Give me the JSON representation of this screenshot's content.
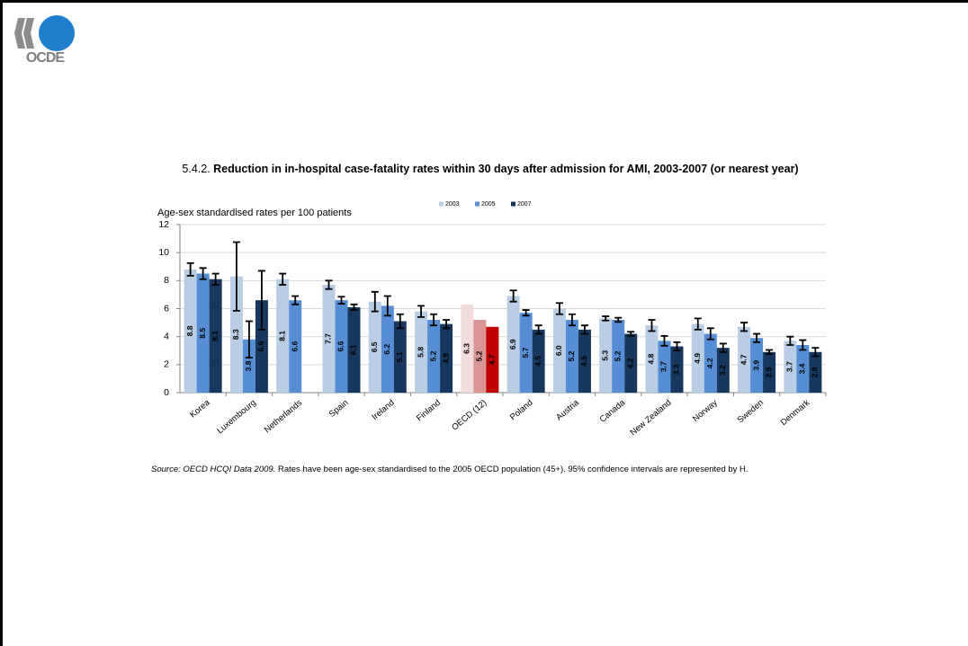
{
  "logo": "OCDE",
  "chart_data": {
    "type": "bar",
    "number": "5.4.2.",
    "title": "Reduction in in-hospital case-fatality rates within 30 days after admission for AMI, 2003-2007 (or nearest year)",
    "y_label": "Age-sex standardised rates per 100 patients",
    "categories": [
      "Korea",
      "Luxembourg",
      "Netherlands",
      "Spain",
      "Ireland",
      "Finland",
      "OECD (12)",
      "Poland",
      "Austria",
      "Canada",
      "New Zealand",
      "Norway",
      "Sweden",
      "Denmark"
    ],
    "highlight_category": "OECD (12)",
    "series": [
      {
        "name": "2003",
        "color": "#b9cde5",
        "highlight_color": "#f2dcdb",
        "values": [
          8.8,
          8.3,
          8.1,
          7.7,
          6.5,
          5.8,
          6.3,
          6.9,
          6.0,
          5.3,
          4.8,
          4.9,
          4.7,
          3.7
        ],
        "value_labels": [
          "8.8",
          "8.3",
          "8.1",
          "7.7",
          "6.5",
          "5.8",
          "6.3",
          "6.9",
          "6.0",
          "5.3",
          "4.8",
          "4.9",
          "4.7",
          "3.7"
        ],
        "errors": [
          0.45,
          2.45,
          0.4,
          0.3,
          0.7,
          0.4,
          null,
          0.4,
          0.4,
          0.15,
          0.4,
          0.4,
          0.3,
          0.3
        ]
      },
      {
        "name": "2005",
        "color": "#558ed5",
        "highlight_color": "#d99694",
        "values": [
          8.5,
          3.8,
          6.6,
          6.6,
          6.2,
          5.2,
          5.2,
          5.7,
          5.2,
          5.2,
          3.7,
          4.2,
          3.9,
          3.4
        ],
        "value_labels": [
          "8.5",
          "3.8",
          "6.6",
          "6.6",
          "6.2",
          "5.2",
          "5.2",
          "5.7",
          "5.2",
          "5.2",
          "3.7",
          "4.2",
          "3.9",
          "3.4"
        ],
        "errors": [
          0.4,
          1.3,
          0.3,
          0.25,
          0.7,
          0.4,
          null,
          0.2,
          0.4,
          0.15,
          0.35,
          0.4,
          0.3,
          0.35
        ]
      },
      {
        "name": "2007",
        "color": "#17375e",
        "highlight_color": "#c00000",
        "values": [
          8.1,
          6.6,
          null,
          6.1,
          5.1,
          4.9,
          4.7,
          4.5,
          4.5,
          4.2,
          3.3,
          3.2,
          2.9,
          2.9
        ],
        "value_labels": [
          "8.1",
          "6.6",
          null,
          "6.1",
          "5.1",
          "4.9",
          "4.7",
          "4.5",
          "4.5",
          "4.2",
          "3.3",
          "3.2",
          "2.9",
          "2.9"
        ],
        "errors": [
          0.4,
          2.1,
          null,
          0.2,
          0.5,
          0.3,
          null,
          0.3,
          0.3,
          0.15,
          0.3,
          0.3,
          0.15,
          0.3
        ]
      }
    ],
    "ylim": [
      0,
      12
    ],
    "yticks": [
      0,
      2,
      4,
      6,
      8,
      10,
      12
    ],
    "grid": true,
    "legend": "top",
    "source_italic": "Source: OECD HCQI Data 2009.",
    "source": "Rates have been age-sex standardised to the 2005 OECD population (45+). 95% confidence intervals are represented by H."
  }
}
